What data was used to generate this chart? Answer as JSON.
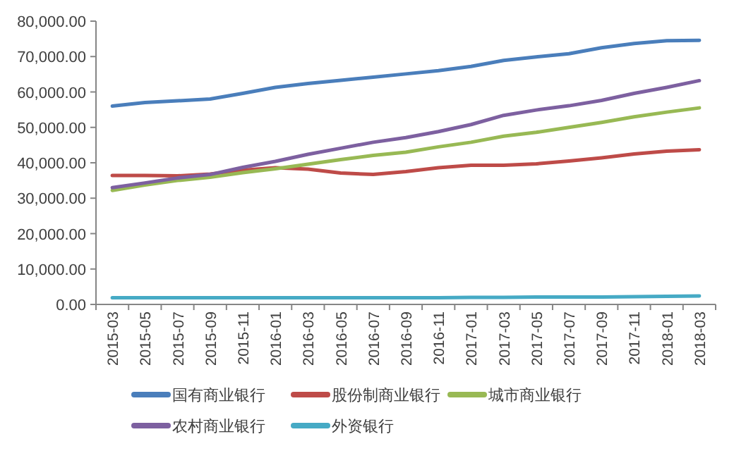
{
  "chart_data": {
    "type": "line",
    "categories": [
      "2015-03",
      "2015-05",
      "2015-07",
      "2015-09",
      "2015-11",
      "2016-01",
      "2016-03",
      "2016-05",
      "2016-07",
      "2016-09",
      "2016-11",
      "2017-01",
      "2017-03",
      "2017-05",
      "2017-07",
      "2017-09",
      "2017-11",
      "2018-01",
      "2018-03"
    ],
    "series": [
      {
        "name": "国有商业银行",
        "color": "#4a7ebb",
        "values": [
          56000,
          57000,
          57500,
          58000,
          59600,
          61300,
          62400,
          63300,
          64200,
          65100,
          66000,
          67200,
          68900,
          69900,
          70800,
          72500,
          73700,
          74500,
          74600
        ]
      },
      {
        "name": "股份制商业银行",
        "color": "#be4b48",
        "values": [
          36400,
          36400,
          36300,
          36800,
          37900,
          38600,
          38200,
          37100,
          36700,
          37500,
          38600,
          39300,
          39300,
          39700,
          40500,
          41400,
          42500,
          43300,
          43700
        ]
      },
      {
        "name": "城市商业银行",
        "color": "#98b954",
        "values": [
          32200,
          33700,
          35000,
          35900,
          37200,
          38300,
          39600,
          40900,
          42100,
          43000,
          44500,
          45800,
          47500,
          48600,
          50000,
          51400,
          53000,
          54300,
          55500
        ]
      },
      {
        "name": "农村商业银行",
        "color": "#7d60a0",
        "values": [
          33000,
          34300,
          35700,
          36700,
          38700,
          40400,
          42400,
          44100,
          45800,
          47100,
          48800,
          50800,
          53400,
          54900,
          56100,
          57600,
          59600,
          61300,
          63200
        ]
      },
      {
        "name": "外资银行",
        "color": "#46aac5",
        "values": [
          1900,
          1900,
          1900,
          1900,
          1900,
          1900,
          1900,
          1900,
          1900,
          1900,
          1900,
          2000,
          2000,
          2100,
          2100,
          2100,
          2200,
          2300,
          2400
        ]
      }
    ],
    "ylim": [
      0,
      80000
    ],
    "yticks": [
      {
        "value": 0,
        "label": "0.00"
      },
      {
        "value": 10000,
        "label": "10,000.00"
      },
      {
        "value": 20000,
        "label": "20,000.00"
      },
      {
        "value": 30000,
        "label": "30,000.00"
      },
      {
        "value": 40000,
        "label": "40,000.00"
      },
      {
        "value": 50000,
        "label": "50,000.00"
      },
      {
        "value": 60000,
        "label": "60,000.00"
      },
      {
        "value": 70000,
        "label": "70,000.00"
      },
      {
        "value": 80000,
        "label": "80,000.00"
      }
    ],
    "legend": "bottom"
  }
}
